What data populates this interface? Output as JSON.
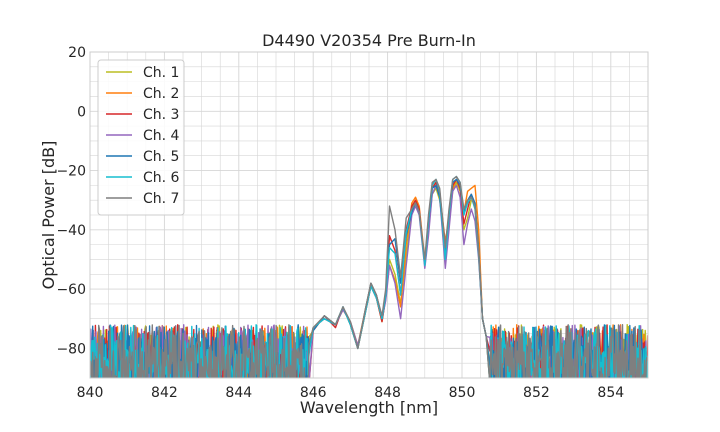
{
  "chart_data": {
    "type": "line",
    "title": "D4490 V20354 Pre Burn-In",
    "xlabel": "Wavelength [nm]",
    "ylabel": "Optical Power [dB]",
    "xlim": [
      840,
      855
    ],
    "ylim": [
      -90,
      20
    ],
    "xticks": [
      840,
      842,
      844,
      846,
      848,
      850,
      852,
      854
    ],
    "yticks": [
      -80,
      -60,
      -40,
      -20,
      0,
      20
    ],
    "xtick_labels": [
      "840",
      "842",
      "844",
      "846",
      "848",
      "850",
      "852",
      "854"
    ],
    "ytick_labels": [
      "−80",
      "−60",
      "−40",
      "−20",
      "0",
      "20"
    ],
    "grid": true,
    "minor_grid": true,
    "legend_position": "upper-left",
    "noise_floor_db": -80,
    "series": [
      {
        "name": "Ch. 1",
        "color": "#bcbd22",
        "points": [
          [
            846.0,
            -74
          ],
          [
            846.3,
            -69
          ],
          [
            846.6,
            -72
          ],
          [
            846.8,
            -66
          ],
          [
            847.0,
            -72
          ],
          [
            847.2,
            -80
          ],
          [
            847.4,
            -68
          ],
          [
            847.55,
            -59
          ],
          [
            847.7,
            -63
          ],
          [
            847.85,
            -71
          ],
          [
            847.95,
            -63
          ],
          [
            848.05,
            -50
          ],
          [
            848.2,
            -55
          ],
          [
            848.35,
            -65
          ],
          [
            848.5,
            -49
          ],
          [
            848.65,
            -33
          ],
          [
            848.75,
            -30
          ],
          [
            848.85,
            -33
          ],
          [
            849.0,
            -52
          ],
          [
            849.1,
            -40
          ],
          [
            849.2,
            -28
          ],
          [
            849.3,
            -26
          ],
          [
            849.4,
            -30
          ],
          [
            849.55,
            -45
          ],
          [
            849.65,
            -38
          ],
          [
            849.75,
            -27
          ],
          [
            849.85,
            -24
          ],
          [
            849.95,
            -27
          ],
          [
            850.05,
            -40
          ],
          [
            850.15,
            -36
          ],
          [
            850.25,
            -30
          ],
          [
            850.35,
            -31
          ],
          [
            850.45,
            -45
          ],
          [
            850.55,
            -70
          ],
          [
            850.65,
            -76
          ]
        ]
      },
      {
        "name": "Ch. 2",
        "color": "#ff7f0e",
        "points": [
          [
            846.0,
            -73
          ],
          [
            846.3,
            -70
          ],
          [
            846.6,
            -72
          ],
          [
            846.8,
            -67
          ],
          [
            847.0,
            -71
          ],
          [
            847.2,
            -79
          ],
          [
            847.4,
            -67
          ],
          [
            847.55,
            -58
          ],
          [
            847.7,
            -62
          ],
          [
            847.85,
            -70
          ],
          [
            847.95,
            -62
          ],
          [
            848.05,
            -52
          ],
          [
            848.2,
            -57
          ],
          [
            848.35,
            -66
          ],
          [
            848.5,
            -45
          ],
          [
            848.65,
            -31
          ],
          [
            848.75,
            -29
          ],
          [
            848.85,
            -32
          ],
          [
            849.0,
            -50
          ],
          [
            849.1,
            -38
          ],
          [
            849.2,
            -26
          ],
          [
            849.3,
            -24
          ],
          [
            849.4,
            -28
          ],
          [
            849.55,
            -44
          ],
          [
            849.65,
            -36
          ],
          [
            849.75,
            -26
          ],
          [
            849.85,
            -23
          ],
          [
            849.95,
            -25
          ],
          [
            850.05,
            -34
          ],
          [
            850.15,
            -27
          ],
          [
            850.25,
            -26
          ],
          [
            850.35,
            -25
          ],
          [
            850.45,
            -40
          ],
          [
            850.55,
            -70
          ],
          [
            850.65,
            -76
          ]
        ]
      },
      {
        "name": "Ch. 3",
        "color": "#d62728",
        "points": [
          [
            846.0,
            -74
          ],
          [
            846.3,
            -69
          ],
          [
            846.6,
            -73
          ],
          [
            846.8,
            -66
          ],
          [
            847.0,
            -72
          ],
          [
            847.2,
            -80
          ],
          [
            847.4,
            -68
          ],
          [
            847.55,
            -59
          ],
          [
            847.7,
            -63
          ],
          [
            847.85,
            -71
          ],
          [
            847.95,
            -63
          ],
          [
            848.05,
            -42
          ],
          [
            848.2,
            -47
          ],
          [
            848.35,
            -62
          ],
          [
            848.5,
            -40
          ],
          [
            848.65,
            -32
          ],
          [
            848.75,
            -30
          ],
          [
            848.85,
            -33
          ],
          [
            849.0,
            -52
          ],
          [
            849.1,
            -36
          ],
          [
            849.2,
            -26
          ],
          [
            849.3,
            -24
          ],
          [
            849.4,
            -27
          ],
          [
            849.55,
            -46
          ],
          [
            849.65,
            -35
          ],
          [
            849.75,
            -25
          ],
          [
            849.85,
            -23
          ],
          [
            849.95,
            -26
          ],
          [
            850.05,
            -38
          ],
          [
            850.15,
            -33
          ],
          [
            850.25,
            -28
          ],
          [
            850.35,
            -32
          ],
          [
            850.45,
            -48
          ],
          [
            850.55,
            -70
          ],
          [
            850.65,
            -76
          ]
        ]
      },
      {
        "name": "Ch. 4",
        "color": "#9467bd",
        "points": [
          [
            846.0,
            -73
          ],
          [
            846.3,
            -70
          ],
          [
            846.6,
            -72
          ],
          [
            846.8,
            -67
          ],
          [
            847.0,
            -71
          ],
          [
            847.2,
            -79
          ],
          [
            847.4,
            -68
          ],
          [
            847.55,
            -59
          ],
          [
            847.7,
            -63
          ],
          [
            847.85,
            -70
          ],
          [
            847.95,
            -64
          ],
          [
            848.05,
            -52
          ],
          [
            848.2,
            -58
          ],
          [
            848.35,
            -70
          ],
          [
            848.5,
            -52
          ],
          [
            848.65,
            -35
          ],
          [
            848.75,
            -32
          ],
          [
            848.85,
            -35
          ],
          [
            849.0,
            -53
          ],
          [
            849.1,
            -42
          ],
          [
            849.2,
            -28
          ],
          [
            849.3,
            -25
          ],
          [
            849.4,
            -29
          ],
          [
            849.55,
            -53
          ],
          [
            849.65,
            -40
          ],
          [
            849.75,
            -27
          ],
          [
            849.85,
            -25
          ],
          [
            849.95,
            -29
          ],
          [
            850.05,
            -45
          ],
          [
            850.15,
            -38
          ],
          [
            850.25,
            -33
          ],
          [
            850.35,
            -37
          ],
          [
            850.45,
            -50
          ],
          [
            850.55,
            -70
          ],
          [
            850.65,
            -76
          ]
        ]
      },
      {
        "name": "Ch. 5",
        "color": "#1f77b4",
        "points": [
          [
            846.0,
            -74
          ],
          [
            846.3,
            -69
          ],
          [
            846.6,
            -72
          ],
          [
            846.8,
            -66
          ],
          [
            847.0,
            -72
          ],
          [
            847.2,
            -80
          ],
          [
            847.4,
            -67
          ],
          [
            847.55,
            -58
          ],
          [
            847.7,
            -62
          ],
          [
            847.85,
            -70
          ],
          [
            847.95,
            -62
          ],
          [
            848.05,
            -45
          ],
          [
            848.2,
            -43
          ],
          [
            848.35,
            -58
          ],
          [
            848.5,
            -42
          ],
          [
            848.65,
            -34
          ],
          [
            848.75,
            -31
          ],
          [
            848.85,
            -34
          ],
          [
            849.0,
            -51
          ],
          [
            849.1,
            -37
          ],
          [
            849.2,
            -26
          ],
          [
            849.3,
            -25
          ],
          [
            849.4,
            -29
          ],
          [
            849.55,
            -48
          ],
          [
            849.65,
            -34
          ],
          [
            849.75,
            -24
          ],
          [
            849.85,
            -23
          ],
          [
            849.95,
            -25
          ],
          [
            850.05,
            -34
          ],
          [
            850.15,
            -30
          ],
          [
            850.25,
            -28
          ],
          [
            850.35,
            -31
          ],
          [
            850.45,
            -47
          ],
          [
            850.55,
            -70
          ],
          [
            850.65,
            -76
          ]
        ]
      },
      {
        "name": "Ch. 6",
        "color": "#17becf",
        "points": [
          [
            846.0,
            -73
          ],
          [
            846.3,
            -70
          ],
          [
            846.6,
            -72
          ],
          [
            846.8,
            -66
          ],
          [
            847.0,
            -72
          ],
          [
            847.2,
            -80
          ],
          [
            847.4,
            -68
          ],
          [
            847.55,
            -59
          ],
          [
            847.7,
            -63
          ],
          [
            847.85,
            -70
          ],
          [
            847.95,
            -62
          ],
          [
            848.05,
            -46
          ],
          [
            848.2,
            -48
          ],
          [
            848.35,
            -62
          ],
          [
            848.5,
            -41
          ],
          [
            848.65,
            -33
          ],
          [
            848.75,
            -31
          ],
          [
            848.85,
            -34
          ],
          [
            849.0,
            -52
          ],
          [
            849.1,
            -37
          ],
          [
            849.2,
            -25
          ],
          [
            849.3,
            -23
          ],
          [
            849.4,
            -27
          ],
          [
            849.55,
            -50
          ],
          [
            849.65,
            -35
          ],
          [
            849.75,
            -23
          ],
          [
            849.85,
            -22
          ],
          [
            849.95,
            -24
          ],
          [
            850.05,
            -35
          ],
          [
            850.15,
            -31
          ],
          [
            850.25,
            -29
          ],
          [
            850.35,
            -33
          ],
          [
            850.45,
            -49
          ],
          [
            850.55,
            -70
          ],
          [
            850.65,
            -76
          ]
        ]
      },
      {
        "name": "Ch. 7",
        "color": "#7f7f7f",
        "points": [
          [
            846.0,
            -73
          ],
          [
            846.3,
            -69
          ],
          [
            846.6,
            -72
          ],
          [
            846.8,
            -66
          ],
          [
            847.0,
            -71
          ],
          [
            847.2,
            -80
          ],
          [
            847.4,
            -67
          ],
          [
            847.55,
            -58
          ],
          [
            847.7,
            -62
          ],
          [
            847.85,
            -69
          ],
          [
            847.95,
            -60
          ],
          [
            848.05,
            -32
          ],
          [
            848.2,
            -40
          ],
          [
            848.35,
            -56
          ],
          [
            848.5,
            -36
          ],
          [
            848.65,
            -33
          ],
          [
            848.75,
            -31
          ],
          [
            848.85,
            -34
          ],
          [
            849.0,
            -50
          ],
          [
            849.1,
            -35
          ],
          [
            849.2,
            -24
          ],
          [
            849.3,
            -23
          ],
          [
            849.4,
            -26
          ],
          [
            849.55,
            -46
          ],
          [
            849.65,
            -33
          ],
          [
            849.75,
            -23
          ],
          [
            849.85,
            -22
          ],
          [
            849.95,
            -24
          ],
          [
            850.05,
            -33
          ],
          [
            850.15,
            -30
          ],
          [
            850.25,
            -29
          ],
          [
            850.35,
            -32
          ],
          [
            850.45,
            -48
          ],
          [
            850.55,
            -70
          ],
          [
            850.65,
            -76
          ]
        ]
      }
    ]
  }
}
